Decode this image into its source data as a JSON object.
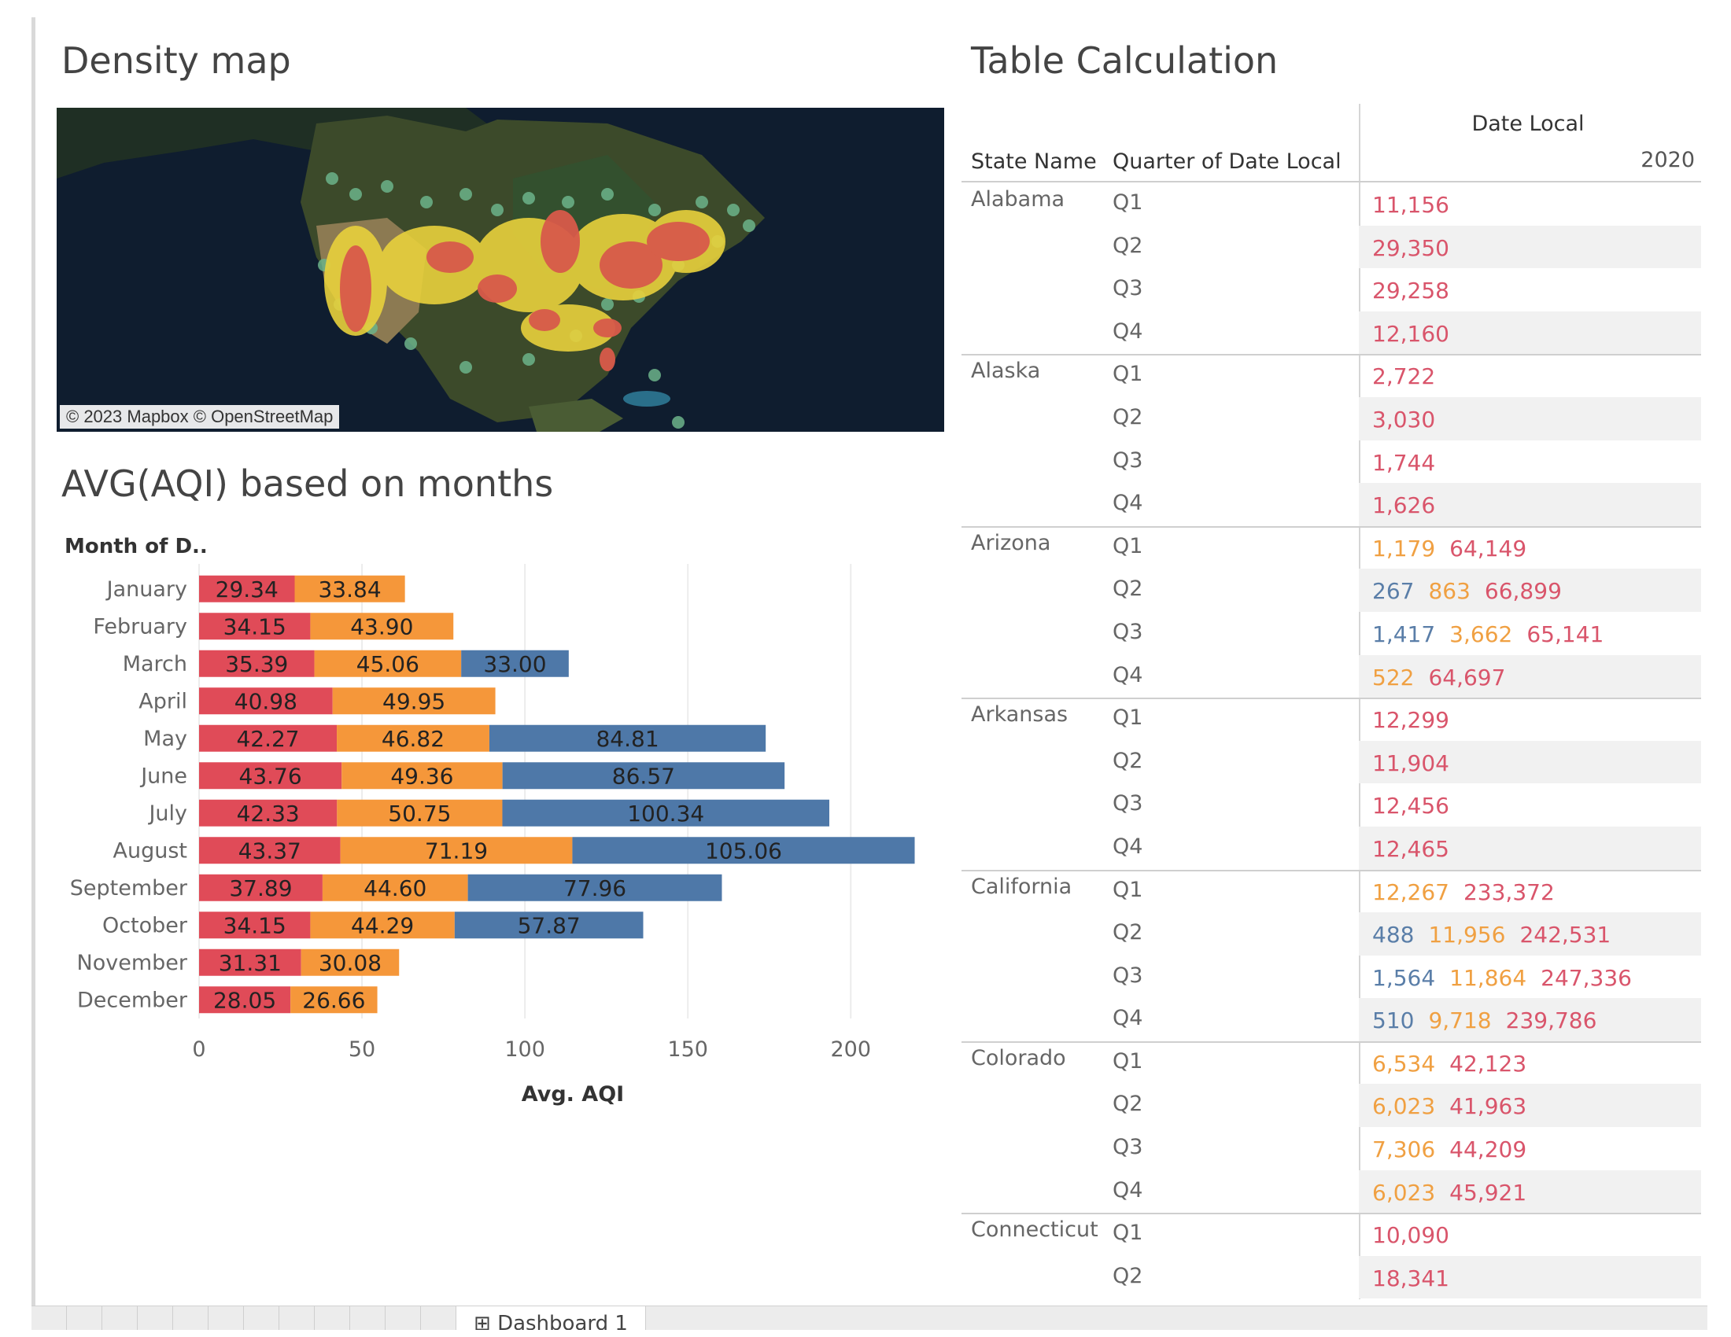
{
  "map": {
    "title": "Density map",
    "attribution": "© 2023 Mapbox © OpenStreetMap"
  },
  "chart_title": "AVG(AQI) based on months",
  "chart_data": {
    "type": "bar",
    "orientation": "horizontal",
    "stacked": true,
    "title": "AVG(AQI) based on months",
    "row_header": "Month of D..",
    "xlabel": "Avg. AQI",
    "xlim": [
      0,
      230
    ],
    "xticks": [
      0,
      50,
      100,
      150,
      200
    ],
    "categories": [
      "January",
      "February",
      "March",
      "April",
      "May",
      "June",
      "July",
      "August",
      "September",
      "October",
      "November",
      "December"
    ],
    "series": [
      {
        "color": "#e04b58",
        "values": [
          29.34,
          34.15,
          35.39,
          40.98,
          42.27,
          43.76,
          42.33,
          43.37,
          37.89,
          34.15,
          31.31,
          28.05
        ]
      },
      {
        "color": "#f5973a",
        "values": [
          33.84,
          43.9,
          45.06,
          49.95,
          46.82,
          49.36,
          50.75,
          71.19,
          44.6,
          44.29,
          30.08,
          26.66
        ]
      },
      {
        "color": "#4e78a8",
        "values": [
          null,
          null,
          33.0,
          null,
          84.81,
          86.57,
          100.34,
          105.06,
          77.96,
          57.87,
          null,
          null
        ]
      }
    ],
    "grid": true
  },
  "table": {
    "title": "Table Calculation",
    "col_state": "State Name",
    "col_quarter": "Quarter of Date Local",
    "col_date": "Date Local",
    "year": "2020",
    "rows": [
      {
        "state": "Alabama",
        "q": "Q1",
        "vals": [
          {
            "t": "11,156",
            "c": "red"
          }
        ]
      },
      {
        "state": "",
        "q": "Q2",
        "vals": [
          {
            "t": "29,350",
            "c": "red"
          }
        ]
      },
      {
        "state": "",
        "q": "Q3",
        "vals": [
          {
            "t": "29,258",
            "c": "red"
          }
        ]
      },
      {
        "state": "",
        "q": "Q4",
        "vals": [
          {
            "t": "12,160",
            "c": "red"
          }
        ]
      },
      {
        "state": "Alaska",
        "q": "Q1",
        "vals": [
          {
            "t": "2,722",
            "c": "red"
          }
        ]
      },
      {
        "state": "",
        "q": "Q2",
        "vals": [
          {
            "t": "3,030",
            "c": "red"
          }
        ]
      },
      {
        "state": "",
        "q": "Q3",
        "vals": [
          {
            "t": "1,744",
            "c": "red"
          }
        ]
      },
      {
        "state": "",
        "q": "Q4",
        "vals": [
          {
            "t": "1,626",
            "c": "red"
          }
        ]
      },
      {
        "state": "Arizona",
        "q": "Q1",
        "vals": [
          {
            "t": "1,179",
            "c": "orange"
          },
          {
            "t": "64,149",
            "c": "red"
          }
        ]
      },
      {
        "state": "",
        "q": "Q2",
        "vals": [
          {
            "t": "267",
            "c": "blue"
          },
          {
            "t": "863",
            "c": "orange"
          },
          {
            "t": "66,899",
            "c": "red"
          }
        ]
      },
      {
        "state": "",
        "q": "Q3",
        "vals": [
          {
            "t": "1,417",
            "c": "blue"
          },
          {
            "t": "3,662",
            "c": "orange"
          },
          {
            "t": "65,141",
            "c": "red"
          }
        ]
      },
      {
        "state": "",
        "q": "Q4",
        "vals": [
          {
            "t": "522",
            "c": "orange"
          },
          {
            "t": "64,697",
            "c": "red"
          }
        ]
      },
      {
        "state": "Arkansas",
        "q": "Q1",
        "vals": [
          {
            "t": "12,299",
            "c": "red"
          }
        ]
      },
      {
        "state": "",
        "q": "Q2",
        "vals": [
          {
            "t": "11,904",
            "c": "red"
          }
        ]
      },
      {
        "state": "",
        "q": "Q3",
        "vals": [
          {
            "t": "12,456",
            "c": "red"
          }
        ]
      },
      {
        "state": "",
        "q": "Q4",
        "vals": [
          {
            "t": "12,465",
            "c": "red"
          }
        ]
      },
      {
        "state": "California",
        "q": "Q1",
        "vals": [
          {
            "t": "12,267",
            "c": "orange"
          },
          {
            "t": "233,372",
            "c": "red"
          }
        ]
      },
      {
        "state": "",
        "q": "Q2",
        "vals": [
          {
            "t": "488",
            "c": "blue"
          },
          {
            "t": "11,956",
            "c": "orange"
          },
          {
            "t": "242,531",
            "c": "red"
          }
        ]
      },
      {
        "state": "",
        "q": "Q3",
        "vals": [
          {
            "t": "1,564",
            "c": "blue"
          },
          {
            "t": "11,864",
            "c": "orange"
          },
          {
            "t": "247,336",
            "c": "red"
          }
        ]
      },
      {
        "state": "",
        "q": "Q4",
        "vals": [
          {
            "t": "510",
            "c": "blue"
          },
          {
            "t": "9,718",
            "c": "orange"
          },
          {
            "t": "239,786",
            "c": "red"
          }
        ]
      },
      {
        "state": "Colorado",
        "q": "Q1",
        "vals": [
          {
            "t": "6,534",
            "c": "orange"
          },
          {
            "t": "42,123",
            "c": "red"
          }
        ]
      },
      {
        "state": "",
        "q": "Q2",
        "vals": [
          {
            "t": "6,023",
            "c": "orange"
          },
          {
            "t": "41,963",
            "c": "red"
          }
        ]
      },
      {
        "state": "",
        "q": "Q3",
        "vals": [
          {
            "t": "7,306",
            "c": "orange"
          },
          {
            "t": "44,209",
            "c": "red"
          }
        ]
      },
      {
        "state": "",
        "q": "Q4",
        "vals": [
          {
            "t": "6,023",
            "c": "orange"
          },
          {
            "t": "45,921",
            "c": "red"
          }
        ]
      },
      {
        "state": "Connecticut",
        "q": "Q1",
        "vals": [
          {
            "t": "10,090",
            "c": "red"
          }
        ]
      },
      {
        "state": "",
        "q": "Q2",
        "vals": [
          {
            "t": "18,341",
            "c": "red"
          }
        ]
      }
    ]
  },
  "tabs": {
    "active_icon": "dashboard-icon",
    "active_label": "Dashboard 1"
  }
}
